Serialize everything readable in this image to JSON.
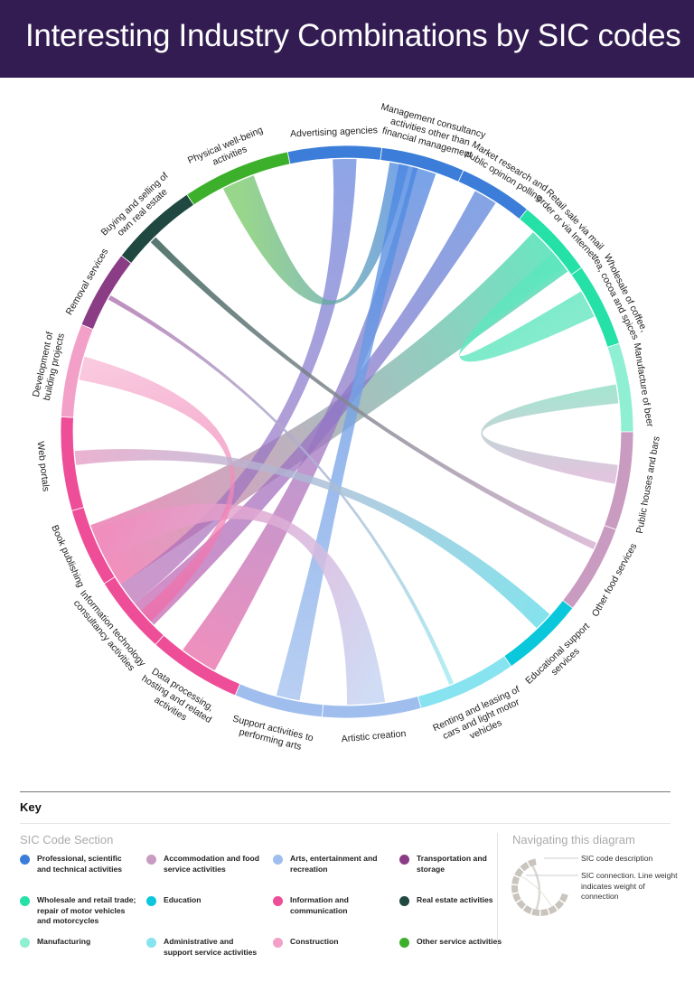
{
  "header": {
    "title": "Interesting Industry Combinations by SIC codes",
    "background": "#331c52"
  },
  "chart_data": {
    "type": "chord",
    "title": "Interesting Industry Combinations by SIC codes",
    "segments": [
      {
        "label": "Advertising agencies",
        "section": "professional",
        "start": -12,
        "end": 7
      },
      {
        "label": "Management consultancy activities other than financial management",
        "section": "professional",
        "start": 7,
        "end": 24
      },
      {
        "label": "Market research and public opinion polling",
        "section": "professional",
        "start": 24,
        "end": 39
      },
      {
        "label": "Retail sale via mail order or via Internet",
        "section": "wholesale",
        "start": 39,
        "end": 55
      },
      {
        "label": "Wholesale of coffee, tea, cocoa and spices",
        "section": "wholesale",
        "start": 55,
        "end": 72
      },
      {
        "label": "Manufacture of beer",
        "section": "manufacturing",
        "start": 72,
        "end": 90
      },
      {
        "label": "Public houses and bars",
        "section": "accommodation",
        "start": 90,
        "end": 110
      },
      {
        "label": "Other food services",
        "section": "accommodation",
        "start": 110,
        "end": 128
      },
      {
        "label": "Educational support services",
        "section": "education",
        "start": 128,
        "end": 145
      },
      {
        "label": "Renting and leasing of cars and light motor vehicles",
        "section": "administrative",
        "start": 145,
        "end": 165
      },
      {
        "label": "Artistic creation",
        "section": "arts",
        "start": 165,
        "end": 185
      },
      {
        "label": "Support activities to performing arts",
        "section": "arts",
        "start": 185,
        "end": 203
      },
      {
        "label": "Data processing, hosting and related activities",
        "section": "information",
        "start": 203,
        "end": 222
      },
      {
        "label": "Information technology consultancy activities",
        "section": "information",
        "start": 222,
        "end": 238
      },
      {
        "label": "Book publishing",
        "section": "information",
        "start": 238,
        "end": 254
      },
      {
        "label": "Web portals",
        "section": "information",
        "start": 254,
        "end": 273
      },
      {
        "label": "Development of building projects",
        "section": "construction",
        "start": 273,
        "end": 292
      },
      {
        "label": "Removal services",
        "section": "transportation",
        "start": 292,
        "end": 308
      },
      {
        "label": "Buying and selling of own real estate",
        "section": "realestate",
        "start": 308,
        "end": 326
      },
      {
        "label": "Physical well-being activities",
        "section": "otherservice",
        "start": 326,
        "end": 348
      }
    ],
    "connections": [
      {
        "from": "Book publishing",
        "to": "Retail sale via mail order or via Internet",
        "a1": 236,
        "a2": 250,
        "b1": 43,
        "b2": 54,
        "color": "#ee74ac",
        "color2": "#46dfb0",
        "opacity": 0.8
      },
      {
        "from": "Data processing, hosting and related activities",
        "to": "Management consultancy activities other than financial management",
        "a1": 209,
        "a2": 217,
        "b1": 14,
        "b2": 19,
        "color": "#e96aa8",
        "color2": "#4a86e0",
        "opacity": 0.75
      },
      {
        "from": "Information technology consultancy activities",
        "to": "Market research and public opinion polling",
        "a1": 225,
        "a2": 231,
        "b1": 28,
        "b2": 33,
        "color": "#c966b0",
        "color2": "#5a86dc",
        "opacity": 0.75
      },
      {
        "from": "Advertising agencies",
        "to": "Information technology consultancy activities",
        "a1": -3,
        "a2": 2,
        "b1": 231,
        "b2": 236,
        "color": "#5e7fdc",
        "color2": "#b96bb4",
        "opacity": 0.7
      },
      {
        "from": "Physical well-being activities",
        "to": "Management consultancy activities other than financial management",
        "a1": 333,
        "a2": 340,
        "b1": 9,
        "b2": 13,
        "color": "#76c964",
        "color2": "#4a86e0",
        "opacity": 0.75
      },
      {
        "from": "Support activities to performing arts",
        "to": "Management consultancy activities other than financial management",
        "a1": 190,
        "a2": 195,
        "b1": 11,
        "b2": 15,
        "color": "#a7c3ef",
        "color2": "#4a86e0",
        "opacity": 0.8
      },
      {
        "from": "Artistic creation",
        "to": "Book publishing",
        "a1": 172,
        "a2": 180,
        "b1": 242,
        "b2": 249,
        "color": "#c7d6f3",
        "color2": "#f08dbe",
        "opacity": 0.85
      },
      {
        "from": "Development of building projects",
        "to": "Information technology consultancy activities",
        "a1": 281,
        "a2": 286,
        "b1": 226,
        "b2": 229,
        "color": "#f7b7d4",
        "color2": "#ee6aa8",
        "opacity": 0.75
      },
      {
        "from": "Web portals",
        "to": "Educational support services",
        "a1": 263,
        "a2": 266,
        "b1": 132,
        "b2": 136,
        "color": "#e59fc5",
        "color2": "#66dbe8",
        "opacity": 0.8
      },
      {
        "from": "Buying and selling of own real estate",
        "to": "Other food services",
        "a1": 314,
        "a2": 315.5,
        "b1": 114,
        "b2": 115.5,
        "color": "#3a6158",
        "color2": "#d7b4d2",
        "opacity": 0.85
      },
      {
        "from": "Removal services",
        "to": "Renting and leasing of cars and light motor vehicles",
        "a1": 299,
        "a2": 300,
        "b1": 157,
        "b2": 158,
        "color": "#b37bb3",
        "color2": "#a7ecf2",
        "opacity": 0.85
      },
      {
        "from": "Retail sale via mail order or via Internet",
        "to": "Wholesale of coffee, tea, cocoa and spices",
        "a1": 49,
        "a2": 53,
        "b1": 59,
        "b2": 65,
        "color": "#5ce6bd",
        "color2": "#6ee8c4",
        "opacity": 0.85
      },
      {
        "from": "Manufacture of beer",
        "to": "Public houses and bars",
        "a1": 80,
        "a2": 84,
        "b1": 97,
        "b2": 101,
        "color": "#9fe0cc",
        "color2": "#dcc0da",
        "opacity": 0.9
      }
    ]
  },
  "sections": {
    "professional": "#3b7dd8",
    "accommodation": "#c99bc0",
    "arts": "#9fbeee",
    "transportation": "#8a3c85",
    "wholesale": "#25e1a8",
    "education": "#0bc7dc",
    "information": "#ee4d98",
    "realestate": "#1e4840",
    "manufacturing": "#8eefd2",
    "administrative": "#86e3ef",
    "construction": "#f3a0c8",
    "otherservice": "#3db02b"
  },
  "key": {
    "title": "Key",
    "section_title": "SIC Code Section",
    "items": [
      {
        "label": "Professional, scientific and technical activities",
        "color": "#3b7dd8"
      },
      {
        "label": "Accommodation and food service activities",
        "color": "#c99bc0"
      },
      {
        "label": "Arts, entertainment and recreation",
        "color": "#9fbeee"
      },
      {
        "label": "Transportation and storage",
        "color": "#8a3c85"
      },
      {
        "label": "Wholesale and retail trade; repair of motor vehicles and motorcycles",
        "color": "#25e1a8"
      },
      {
        "label": "Education",
        "color": "#0bc7dc"
      },
      {
        "label": "Information and communication",
        "color": "#ee4d98"
      },
      {
        "label": "Real estate activities",
        "color": "#1e4840"
      },
      {
        "label": "Manufacturing",
        "color": "#8eefd2"
      },
      {
        "label": "Administrative and support service activities",
        "color": "#86e3ef"
      },
      {
        "label": "Construction",
        "color": "#f3a0c8"
      },
      {
        "label": "Other service activities",
        "color": "#3db02b"
      }
    ],
    "navigating": {
      "title": "Navigating this diagram",
      "desc1": "SIC code description",
      "desc2": "SIC connection. Line weight indicates weight of connection"
    }
  }
}
